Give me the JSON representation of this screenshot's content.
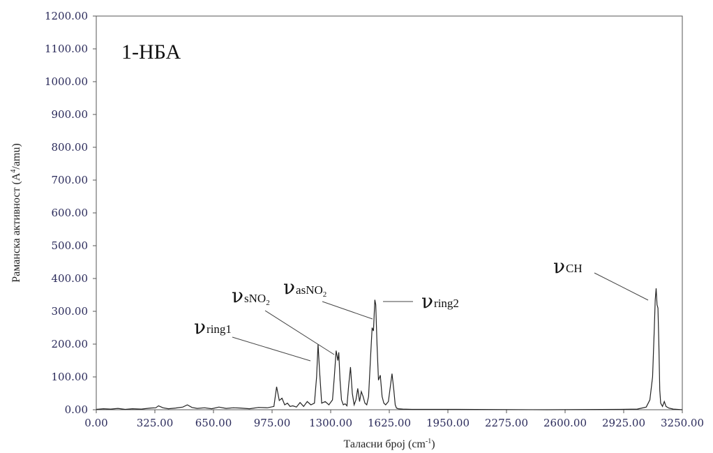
{
  "chart_data": {
    "type": "line",
    "title": "1-НБА",
    "xlabel": "Таласни број (cm",
    "xlabel_sup": "-1",
    "xlabel_end": ")",
    "ylabel": "Раманска активност (A",
    "ylabel_sup": "4",
    "ylabel_end": "/amu)",
    "xlim": [
      0,
      3250
    ],
    "ylim": [
      0,
      1200
    ],
    "x_ticks": [
      "0.00",
      "325.00",
      "650.00",
      "975.00",
      "1300.00",
      "1625.00",
      "1950.00",
      "2275.00",
      "2600.00",
      "2925.00",
      "3250.00"
    ],
    "y_ticks": [
      "0.00",
      "100.00",
      "200.00",
      "300.00",
      "400.00",
      "500.00",
      "600.00",
      "700.00",
      "800.00",
      "900.00",
      "1000.00",
      "1100.00",
      "1200.00"
    ],
    "grid": false,
    "series": [
      {
        "x": [
          0,
          40,
          80,
          120,
          160,
          200,
          250,
          300,
          330,
          345,
          370,
          400,
          440,
          480,
          505,
          530,
          560,
          600,
          640,
          680,
          720,
          760,
          800,
          850,
          900,
          950,
          985,
          1000,
          1015,
          1030,
          1045,
          1060,
          1075,
          1090,
          1110,
          1130,
          1150,
          1170,
          1190,
          1210,
          1222,
          1230,
          1238,
          1250,
          1270,
          1290,
          1310,
          1320,
          1330,
          1340,
          1345,
          1352,
          1360,
          1370,
          1380,
          1390,
          1400,
          1410,
          1420,
          1430,
          1440,
          1450,
          1460,
          1470,
          1480,
          1490,
          1500,
          1510,
          1520,
          1530,
          1537,
          1545,
          1550,
          1557,
          1565,
          1575,
          1585,
          1595,
          1605,
          1620,
          1640,
          1650,
          1658,
          1665,
          1675,
          1700,
          1750,
          1800,
          2000,
          2500,
          2900,
          3000,
          3050,
          3070,
          3085,
          3095,
          3100,
          3105,
          3110,
          3115,
          3120,
          3125,
          3130,
          3140,
          3150,
          3160,
          3175,
          3200,
          3250
        ],
        "y": [
          1,
          3,
          2,
          4,
          1,
          3,
          2,
          5,
          6,
          12,
          6,
          3,
          5,
          8,
          15,
          7,
          4,
          6,
          3,
          8,
          4,
          6,
          5,
          3,
          7,
          6,
          10,
          70,
          28,
          35,
          15,
          20,
          10,
          12,
          8,
          22,
          10,
          25,
          15,
          20,
          100,
          200,
          120,
          20,
          25,
          15,
          30,
          100,
          180,
          150,
          175,
          90,
          30,
          15,
          18,
          12,
          75,
          130,
          50,
          15,
          30,
          65,
          25,
          55,
          40,
          20,
          15,
          40,
          150,
          250,
          240,
          335,
          320,
          200,
          90,
          105,
          40,
          20,
          15,
          25,
          110,
          60,
          15,
          5,
          3,
          2,
          1,
          1,
          1,
          0,
          1,
          2,
          8,
          30,
          100,
          250,
          335,
          370,
          320,
          310,
          200,
          60,
          20,
          10,
          25,
          10,
          5,
          2,
          0
        ]
      }
    ],
    "annotations": [
      {
        "nu": "ν",
        "sub": "ring1",
        "sub2": ""
      },
      {
        "nu": "ν",
        "sub": "sNO",
        "sub2": "2"
      },
      {
        "nu": "ν",
        "sub": "asNO",
        "sub2": "2"
      },
      {
        "nu": "ν",
        "sub": "ring2",
        "sub2": ""
      },
      {
        "nu": "ν",
        "sub": "CH",
        "sub2": ""
      }
    ]
  }
}
